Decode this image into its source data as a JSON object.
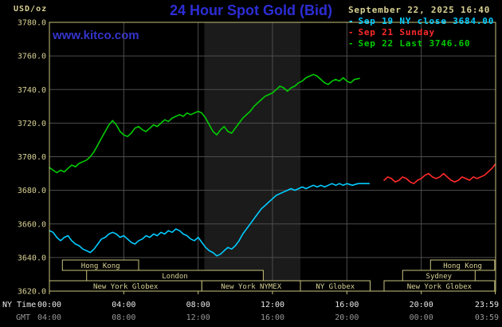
{
  "header": {
    "unit_label": "USD/oz",
    "title": "24 Hour Spot Gold (Bid)",
    "datetime": "September 22, 2025 16:40",
    "watermark": "www.kitco.com"
  },
  "legend": {
    "items": [
      {
        "label": "Sep 19 NY close 3684.00",
        "color": "#00ccff"
      },
      {
        "label": "Sep 21 Sunday",
        "color": "#ff2a2a"
      },
      {
        "label": "Sep 22 Last 3746.60",
        "color": "#00cc00"
      }
    ]
  },
  "colors": {
    "background": "#000000",
    "frame": "#c9c37c",
    "axis_text": "#d8d193",
    "grid": "#4d4d4d",
    "band": "#1b1b1b",
    "ny_label": "#e8e8e8",
    "gmt_label": "#989898",
    "session_text": "#d8d193"
  },
  "chart_data": {
    "type": "line",
    "title": "24 Hour Spot Gold (Bid)",
    "ylabel": "USD/oz",
    "ylim": [
      3620,
      3780
    ],
    "grid": true,
    "y_ticks": [
      {
        "v": 3780,
        "label": "3780.0"
      },
      {
        "v": 3760,
        "label": "3760.0"
      },
      {
        "v": 3740,
        "label": "3740.0"
      },
      {
        "v": 3720,
        "label": "3720.0"
      },
      {
        "v": 3700,
        "label": "3700.0"
      },
      {
        "v": 3680,
        "label": "3680.0"
      },
      {
        "v": 3660,
        "label": "3660.0"
      },
      {
        "v": 3640,
        "label": "3640.0"
      },
      {
        "v": 3620,
        "label": "3620.0"
      }
    ],
    "x_axis_captions": {
      "ny": "NY Time",
      "gmt": "GMT"
    },
    "x_ticks": [
      {
        "hour": 0,
        "ny": "00:00",
        "gmt": "04:00"
      },
      {
        "hour": 4,
        "ny": "04:00",
        "gmt": "08:00"
      },
      {
        "hour": 8,
        "ny": "08:00",
        "gmt": "12:00"
      },
      {
        "hour": 12,
        "ny": "12:00",
        "gmt": "16:00"
      },
      {
        "hour": 16,
        "ny": "16:00",
        "gmt": "20:00"
      },
      {
        "hour": 20,
        "ny": "20:00",
        "gmt": "00:00"
      },
      {
        "hour": 23.983,
        "ny": "23:59",
        "gmt": "03:59"
      }
    ],
    "shaded_region_hours": [
      8.33,
      13.5
    ],
    "sessions": [
      {
        "row": 0,
        "start": 0.7,
        "end": 4.8,
        "label": "Hong Kong"
      },
      {
        "row": 0,
        "start": 20.5,
        "end": 23.95,
        "label": "Hong Kong"
      },
      {
        "row": 1,
        "start": 2.0,
        "end": 11.5,
        "label": "London"
      },
      {
        "row": 1,
        "start": 19.0,
        "end": 22.9,
        "label": "Sydney"
      },
      {
        "row": 2,
        "start": 0,
        "end": 8.2,
        "label": "New York Globex"
      },
      {
        "row": 2,
        "start": 8.2,
        "end": 13.5,
        "label": "New York NYMEX"
      },
      {
        "row": 2,
        "start": 13.5,
        "end": 17.25,
        "label": "NY Globex"
      },
      {
        "row": 2,
        "start": 18.0,
        "end": 23.95,
        "label": "New York Globex"
      }
    ],
    "series": [
      {
        "id": "sep19",
        "name": "Sep 19 NY close 3684.00",
        "color": "#00ccff",
        "points": [
          [
            0,
            3656
          ],
          [
            0.2,
            3655
          ],
          [
            0.4,
            3652
          ],
          [
            0.6,
            3650
          ],
          [
            0.8,
            3652
          ],
          [
            1,
            3653
          ],
          [
            1.2,
            3650
          ],
          [
            1.4,
            3648
          ],
          [
            1.6,
            3647
          ],
          [
            1.8,
            3645
          ],
          [
            2,
            3644
          ],
          [
            2.2,
            3643
          ],
          [
            2.4,
            3645
          ],
          [
            2.6,
            3648
          ],
          [
            2.8,
            3651
          ],
          [
            3,
            3652
          ],
          [
            3.2,
            3654
          ],
          [
            3.4,
            3655
          ],
          [
            3.6,
            3654
          ],
          [
            3.8,
            3652
          ],
          [
            4,
            3653
          ],
          [
            4.2,
            3651
          ],
          [
            4.4,
            3649
          ],
          [
            4.6,
            3648
          ],
          [
            4.8,
            3650
          ],
          [
            5,
            3651
          ],
          [
            5.2,
            3653
          ],
          [
            5.4,
            3652
          ],
          [
            5.6,
            3654
          ],
          [
            5.8,
            3653
          ],
          [
            6,
            3655
          ],
          [
            6.2,
            3654
          ],
          [
            6.4,
            3656
          ],
          [
            6.6,
            3655
          ],
          [
            6.8,
            3657
          ],
          [
            7,
            3656
          ],
          [
            7.2,
            3654
          ],
          [
            7.4,
            3653
          ],
          [
            7.6,
            3651
          ],
          [
            7.8,
            3650
          ],
          [
            8,
            3652
          ],
          [
            8.2,
            3649
          ],
          [
            8.4,
            3646
          ],
          [
            8.6,
            3644
          ],
          [
            8.8,
            3643
          ],
          [
            9,
            3641
          ],
          [
            9.2,
            3642
          ],
          [
            9.4,
            3644
          ],
          [
            9.6,
            3646
          ],
          [
            9.8,
            3645
          ],
          [
            10,
            3647
          ],
          [
            10.2,
            3650
          ],
          [
            10.4,
            3654
          ],
          [
            10.6,
            3657
          ],
          [
            10.8,
            3660
          ],
          [
            11,
            3663
          ],
          [
            11.2,
            3666
          ],
          [
            11.4,
            3669
          ],
          [
            11.6,
            3671
          ],
          [
            11.8,
            3673
          ],
          [
            12,
            3675
          ],
          [
            12.2,
            3677
          ],
          [
            12.4,
            3678
          ],
          [
            12.6,
            3679
          ],
          [
            12.8,
            3680
          ],
          [
            13,
            3681
          ],
          [
            13.2,
            3680
          ],
          [
            13.4,
            3681
          ],
          [
            13.6,
            3682
          ],
          [
            13.8,
            3681
          ],
          [
            14,
            3682
          ],
          [
            14.2,
            3683
          ],
          [
            14.4,
            3682
          ],
          [
            14.6,
            3683
          ],
          [
            14.8,
            3682
          ],
          [
            15,
            3683
          ],
          [
            15.2,
            3684
          ],
          [
            15.4,
            3683
          ],
          [
            15.6,
            3684
          ],
          [
            15.8,
            3683
          ],
          [
            16,
            3684
          ],
          [
            16.3,
            3683
          ],
          [
            16.6,
            3684
          ],
          [
            17,
            3684
          ],
          [
            17.2,
            3684
          ]
        ]
      },
      {
        "id": "sep21",
        "name": "Sep 21 Sunday",
        "color": "#ff2a2a",
        "points": [
          [
            18,
            3686
          ],
          [
            18.2,
            3688
          ],
          [
            18.4,
            3687
          ],
          [
            18.6,
            3685
          ],
          [
            18.8,
            3686
          ],
          [
            19,
            3688
          ],
          [
            19.2,
            3687
          ],
          [
            19.4,
            3685
          ],
          [
            19.6,
            3684
          ],
          [
            19.8,
            3686
          ],
          [
            20,
            3687
          ],
          [
            20.2,
            3689
          ],
          [
            20.4,
            3690
          ],
          [
            20.6,
            3688
          ],
          [
            20.8,
            3687
          ],
          [
            21,
            3688
          ],
          [
            21.2,
            3690
          ],
          [
            21.4,
            3688
          ],
          [
            21.6,
            3686
          ],
          [
            21.8,
            3685
          ],
          [
            22,
            3686
          ],
          [
            22.2,
            3688
          ],
          [
            22.4,
            3687
          ],
          [
            22.6,
            3686
          ],
          [
            22.8,
            3688
          ],
          [
            23,
            3687
          ],
          [
            23.2,
            3688
          ],
          [
            23.4,
            3689
          ],
          [
            23.6,
            3691
          ],
          [
            23.8,
            3693
          ],
          [
            23.98,
            3695.5
          ]
        ]
      },
      {
        "id": "sep22",
        "name": "Sep 22 Last 3746.60",
        "color": "#00cc00",
        "points": [
          [
            0,
            3693.5
          ],
          [
            0.2,
            3692
          ],
          [
            0.4,
            3690.5
          ],
          [
            0.6,
            3692
          ],
          [
            0.8,
            3691
          ],
          [
            1,
            3693
          ],
          [
            1.2,
            3695
          ],
          [
            1.4,
            3694
          ],
          [
            1.6,
            3696
          ],
          [
            1.8,
            3697
          ],
          [
            2,
            3698
          ],
          [
            2.2,
            3700
          ],
          [
            2.4,
            3703
          ],
          [
            2.6,
            3707
          ],
          [
            2.8,
            3711
          ],
          [
            3,
            3715
          ],
          [
            3.2,
            3719
          ],
          [
            3.4,
            3721.5
          ],
          [
            3.6,
            3719
          ],
          [
            3.8,
            3715
          ],
          [
            4,
            3713
          ],
          [
            4.2,
            3712
          ],
          [
            4.4,
            3714
          ],
          [
            4.6,
            3717
          ],
          [
            4.8,
            3718
          ],
          [
            5,
            3716
          ],
          [
            5.2,
            3715
          ],
          [
            5.4,
            3717
          ],
          [
            5.6,
            3719
          ],
          [
            5.8,
            3718
          ],
          [
            6,
            3720
          ],
          [
            6.2,
            3722
          ],
          [
            6.4,
            3721
          ],
          [
            6.6,
            3723
          ],
          [
            6.8,
            3724
          ],
          [
            7,
            3725
          ],
          [
            7.2,
            3724
          ],
          [
            7.4,
            3726
          ],
          [
            7.6,
            3725
          ],
          [
            7.8,
            3726
          ],
          [
            8,
            3727
          ],
          [
            8.2,
            3726
          ],
          [
            8.4,
            3723
          ],
          [
            8.6,
            3719
          ],
          [
            8.8,
            3715
          ],
          [
            9,
            3713
          ],
          [
            9.2,
            3716
          ],
          [
            9.4,
            3718
          ],
          [
            9.6,
            3715
          ],
          [
            9.8,
            3714
          ],
          [
            10,
            3717
          ],
          [
            10.2,
            3720
          ],
          [
            10.4,
            3723
          ],
          [
            10.6,
            3725
          ],
          [
            10.8,
            3727
          ],
          [
            11,
            3730
          ],
          [
            11.2,
            3732
          ],
          [
            11.4,
            3734
          ],
          [
            11.6,
            3736
          ],
          [
            11.8,
            3737
          ],
          [
            12,
            3738
          ],
          [
            12.2,
            3740
          ],
          [
            12.4,
            3742
          ],
          [
            12.6,
            3741
          ],
          [
            12.8,
            3739
          ],
          [
            13,
            3741
          ],
          [
            13.2,
            3742
          ],
          [
            13.4,
            3744
          ],
          [
            13.6,
            3745
          ],
          [
            13.8,
            3747
          ],
          [
            14,
            3748
          ],
          [
            14.2,
            3749
          ],
          [
            14.4,
            3748
          ],
          [
            14.6,
            3746
          ],
          [
            14.8,
            3744
          ],
          [
            15,
            3743
          ],
          [
            15.2,
            3745
          ],
          [
            15.4,
            3746
          ],
          [
            15.6,
            3745
          ],
          [
            15.8,
            3747
          ],
          [
            16,
            3745
          ],
          [
            16.2,
            3744
          ],
          [
            16.4,
            3746
          ],
          [
            16.67,
            3746.6
          ]
        ]
      }
    ]
  }
}
